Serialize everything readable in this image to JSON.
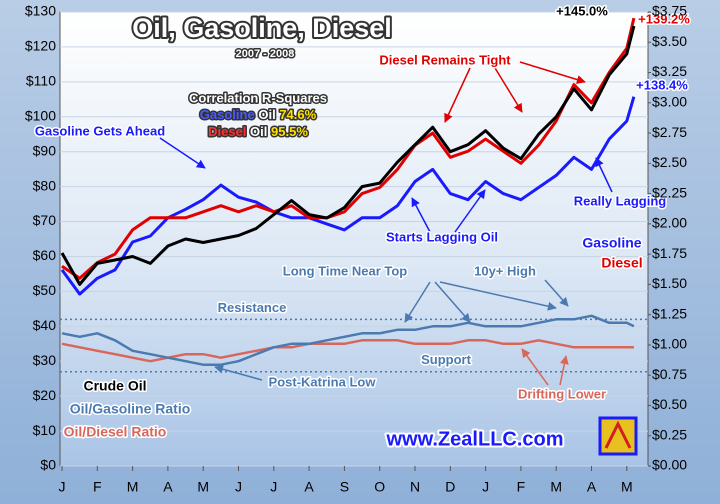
{
  "chart_data": {
    "type": "line",
    "title": "Oil, Gasoline, Diesel",
    "subtitle": "2007 - 2008",
    "correlation": {
      "title": "Correlation R-Squares",
      "rows": [
        {
          "product": "Gasoline",
          "base": "Oil",
          "value": "74.6%"
        },
        {
          "product": "Diesel",
          "base": "Oil",
          "value": "95.5%"
        }
      ]
    },
    "annotations": {
      "gasoline_ahead": "Gasoline Gets Ahead",
      "diesel_tight": "Diesel Remains Tight",
      "starts_lagging": "Starts Lagging Oil",
      "really_lagging": "Really Lagging",
      "near_top": "Long Time Near Top",
      "high": "10y+ High",
      "post_katrina": "Post-Katrina Low",
      "drifting": "Drifting Lower",
      "oil_gain": "+145.0%",
      "diesel_gain": "+139.2%",
      "gasoline_gain": "+138.4%",
      "website": "www.ZealLLC.com"
    },
    "reference_lines": [
      {
        "label": "Resistance",
        "value": 42
      },
      {
        "label": "Support",
        "value": 27
      }
    ],
    "x": [
      0,
      0.5,
      1,
      1.5,
      2,
      2.5,
      3,
      3.5,
      4,
      4.5,
      5,
      5.5,
      6,
      6.5,
      7,
      7.5,
      8,
      8.5,
      9,
      9.5,
      10,
      10.5,
      11,
      11.5,
      12,
      12.5,
      13,
      13.5,
      14,
      14.5,
      15,
      15.5,
      16,
      16.2
    ],
    "xlim": [
      0,
      16.6
    ],
    "xticks": [
      {
        "value": 0,
        "label": "J"
      },
      {
        "value": 1,
        "label": "F"
      },
      {
        "value": 2,
        "label": "M"
      },
      {
        "value": 3,
        "label": "A"
      },
      {
        "value": 4,
        "label": "M"
      },
      {
        "value": 5,
        "label": "J"
      },
      {
        "value": 6,
        "label": "J"
      },
      {
        "value": 7,
        "label": "A"
      },
      {
        "value": 8,
        "label": "S"
      },
      {
        "value": 9,
        "label": "O"
      },
      {
        "value": 10,
        "label": "N"
      },
      {
        "value": 11,
        "label": "D"
      },
      {
        "value": 12,
        "label": "J"
      },
      {
        "value": 13,
        "label": "F"
      },
      {
        "value": 14,
        "label": "M"
      },
      {
        "value": 15,
        "label": "A"
      },
      {
        "value": 16,
        "label": "M"
      }
    ],
    "ylim": [
      0,
      130
    ],
    "yticks": [
      {
        "value": 0,
        "label": "$0"
      },
      {
        "value": 10,
        "label": "$10"
      },
      {
        "value": 20,
        "label": "$20"
      },
      {
        "value": 30,
        "label": "$30"
      },
      {
        "value": 40,
        "label": "$40"
      },
      {
        "value": 50,
        "label": "$50"
      },
      {
        "value": 60,
        "label": "$60"
      },
      {
        "value": 70,
        "label": "$70"
      },
      {
        "value": 80,
        "label": "$80"
      },
      {
        "value": 90,
        "label": "$90"
      },
      {
        "value": 100,
        "label": "$100"
      },
      {
        "value": 110,
        "label": "$110"
      },
      {
        "value": 120,
        "label": "$120"
      },
      {
        "value": 130,
        "label": "$130"
      }
    ],
    "y2lim": [
      0,
      3.75
    ],
    "y2ticks": [
      {
        "value": 0,
        "label": "$0.00"
      },
      {
        "value": 0.25,
        "label": "$0.25"
      },
      {
        "value": 0.5,
        "label": "$0.50"
      },
      {
        "value": 0.75,
        "label": "$0.75"
      },
      {
        "value": 1,
        "label": "$1.00"
      },
      {
        "value": 1.25,
        "label": "$1.25"
      },
      {
        "value": 1.5,
        "label": "$1.50"
      },
      {
        "value": 1.75,
        "label": "$1.75"
      },
      {
        "value": 2,
        "label": "$2.00"
      },
      {
        "value": 2.25,
        "label": "$2.25"
      },
      {
        "value": 2.5,
        "label": "$2.50"
      },
      {
        "value": 2.75,
        "label": "$2.75"
      },
      {
        "value": 3,
        "label": "$3.00"
      },
      {
        "value": 3.25,
        "label": "$3.25"
      },
      {
        "value": 3.5,
        "label": "$3.50"
      },
      {
        "value": 3.75,
        "label": "$3.75"
      }
    ],
    "grid": true,
    "series": [
      {
        "name": "Crude Oil",
        "color": "#000000",
        "values": [
          61,
          52,
          58,
          59,
          60,
          58,
          63,
          65,
          64,
          65,
          66,
          68,
          72,
          76,
          72,
          71,
          74,
          80,
          81,
          87,
          92,
          97,
          90,
          92,
          96,
          91,
          88,
          95,
          100,
          108,
          102,
          112,
          118,
          126
        ]
      },
      {
        "name": "Gasoline",
        "color": "#1a1aff",
        "axis": "y2",
        "values": [
          1.62,
          1.42,
          1.55,
          1.62,
          1.85,
          1.9,
          2.05,
          2.12,
          2.2,
          2.32,
          2.22,
          2.18,
          2.1,
          2.05,
          2.05,
          2.0,
          1.95,
          2.05,
          2.05,
          2.15,
          2.35,
          2.45,
          2.25,
          2.2,
          2.35,
          2.25,
          2.2,
          2.3,
          2.4,
          2.55,
          2.45,
          2.7,
          2.85,
          3.05
        ]
      },
      {
        "name": "Diesel",
        "color": "#e00000",
        "axis": "y2",
        "values": [
          1.65,
          1.55,
          1.68,
          1.75,
          1.95,
          2.05,
          2.05,
          2.05,
          2.1,
          2.15,
          2.1,
          2.15,
          2.1,
          2.15,
          2.05,
          2.05,
          2.1,
          2.25,
          2.3,
          2.45,
          2.65,
          2.75,
          2.55,
          2.6,
          2.7,
          2.6,
          2.5,
          2.65,
          2.85,
          3.15,
          3.0,
          3.25,
          3.45,
          3.7
        ]
      },
      {
        "name": "Oil/Gasoline Ratio",
        "color": "#4a7ab0",
        "values": [
          38,
          37,
          38,
          36,
          33,
          32,
          31,
          30,
          29,
          29,
          30,
          32,
          34,
          35,
          35,
          36,
          37,
          38,
          38,
          39,
          39,
          40,
          40,
          41,
          40,
          40,
          40,
          41,
          42,
          42,
          43,
          41,
          41,
          40
        ]
      },
      {
        "name": "Oil/Diesel Ratio",
        "color": "#d9665a",
        "values": [
          35,
          34,
          33,
          32,
          31,
          30,
          31,
          32,
          32,
          31,
          32,
          33,
          34,
          34,
          35,
          35,
          35,
          36,
          36,
          36,
          35,
          35,
          35,
          36,
          36,
          35,
          35,
          36,
          35,
          34,
          34,
          34,
          34,
          34
        ]
      }
    ]
  }
}
